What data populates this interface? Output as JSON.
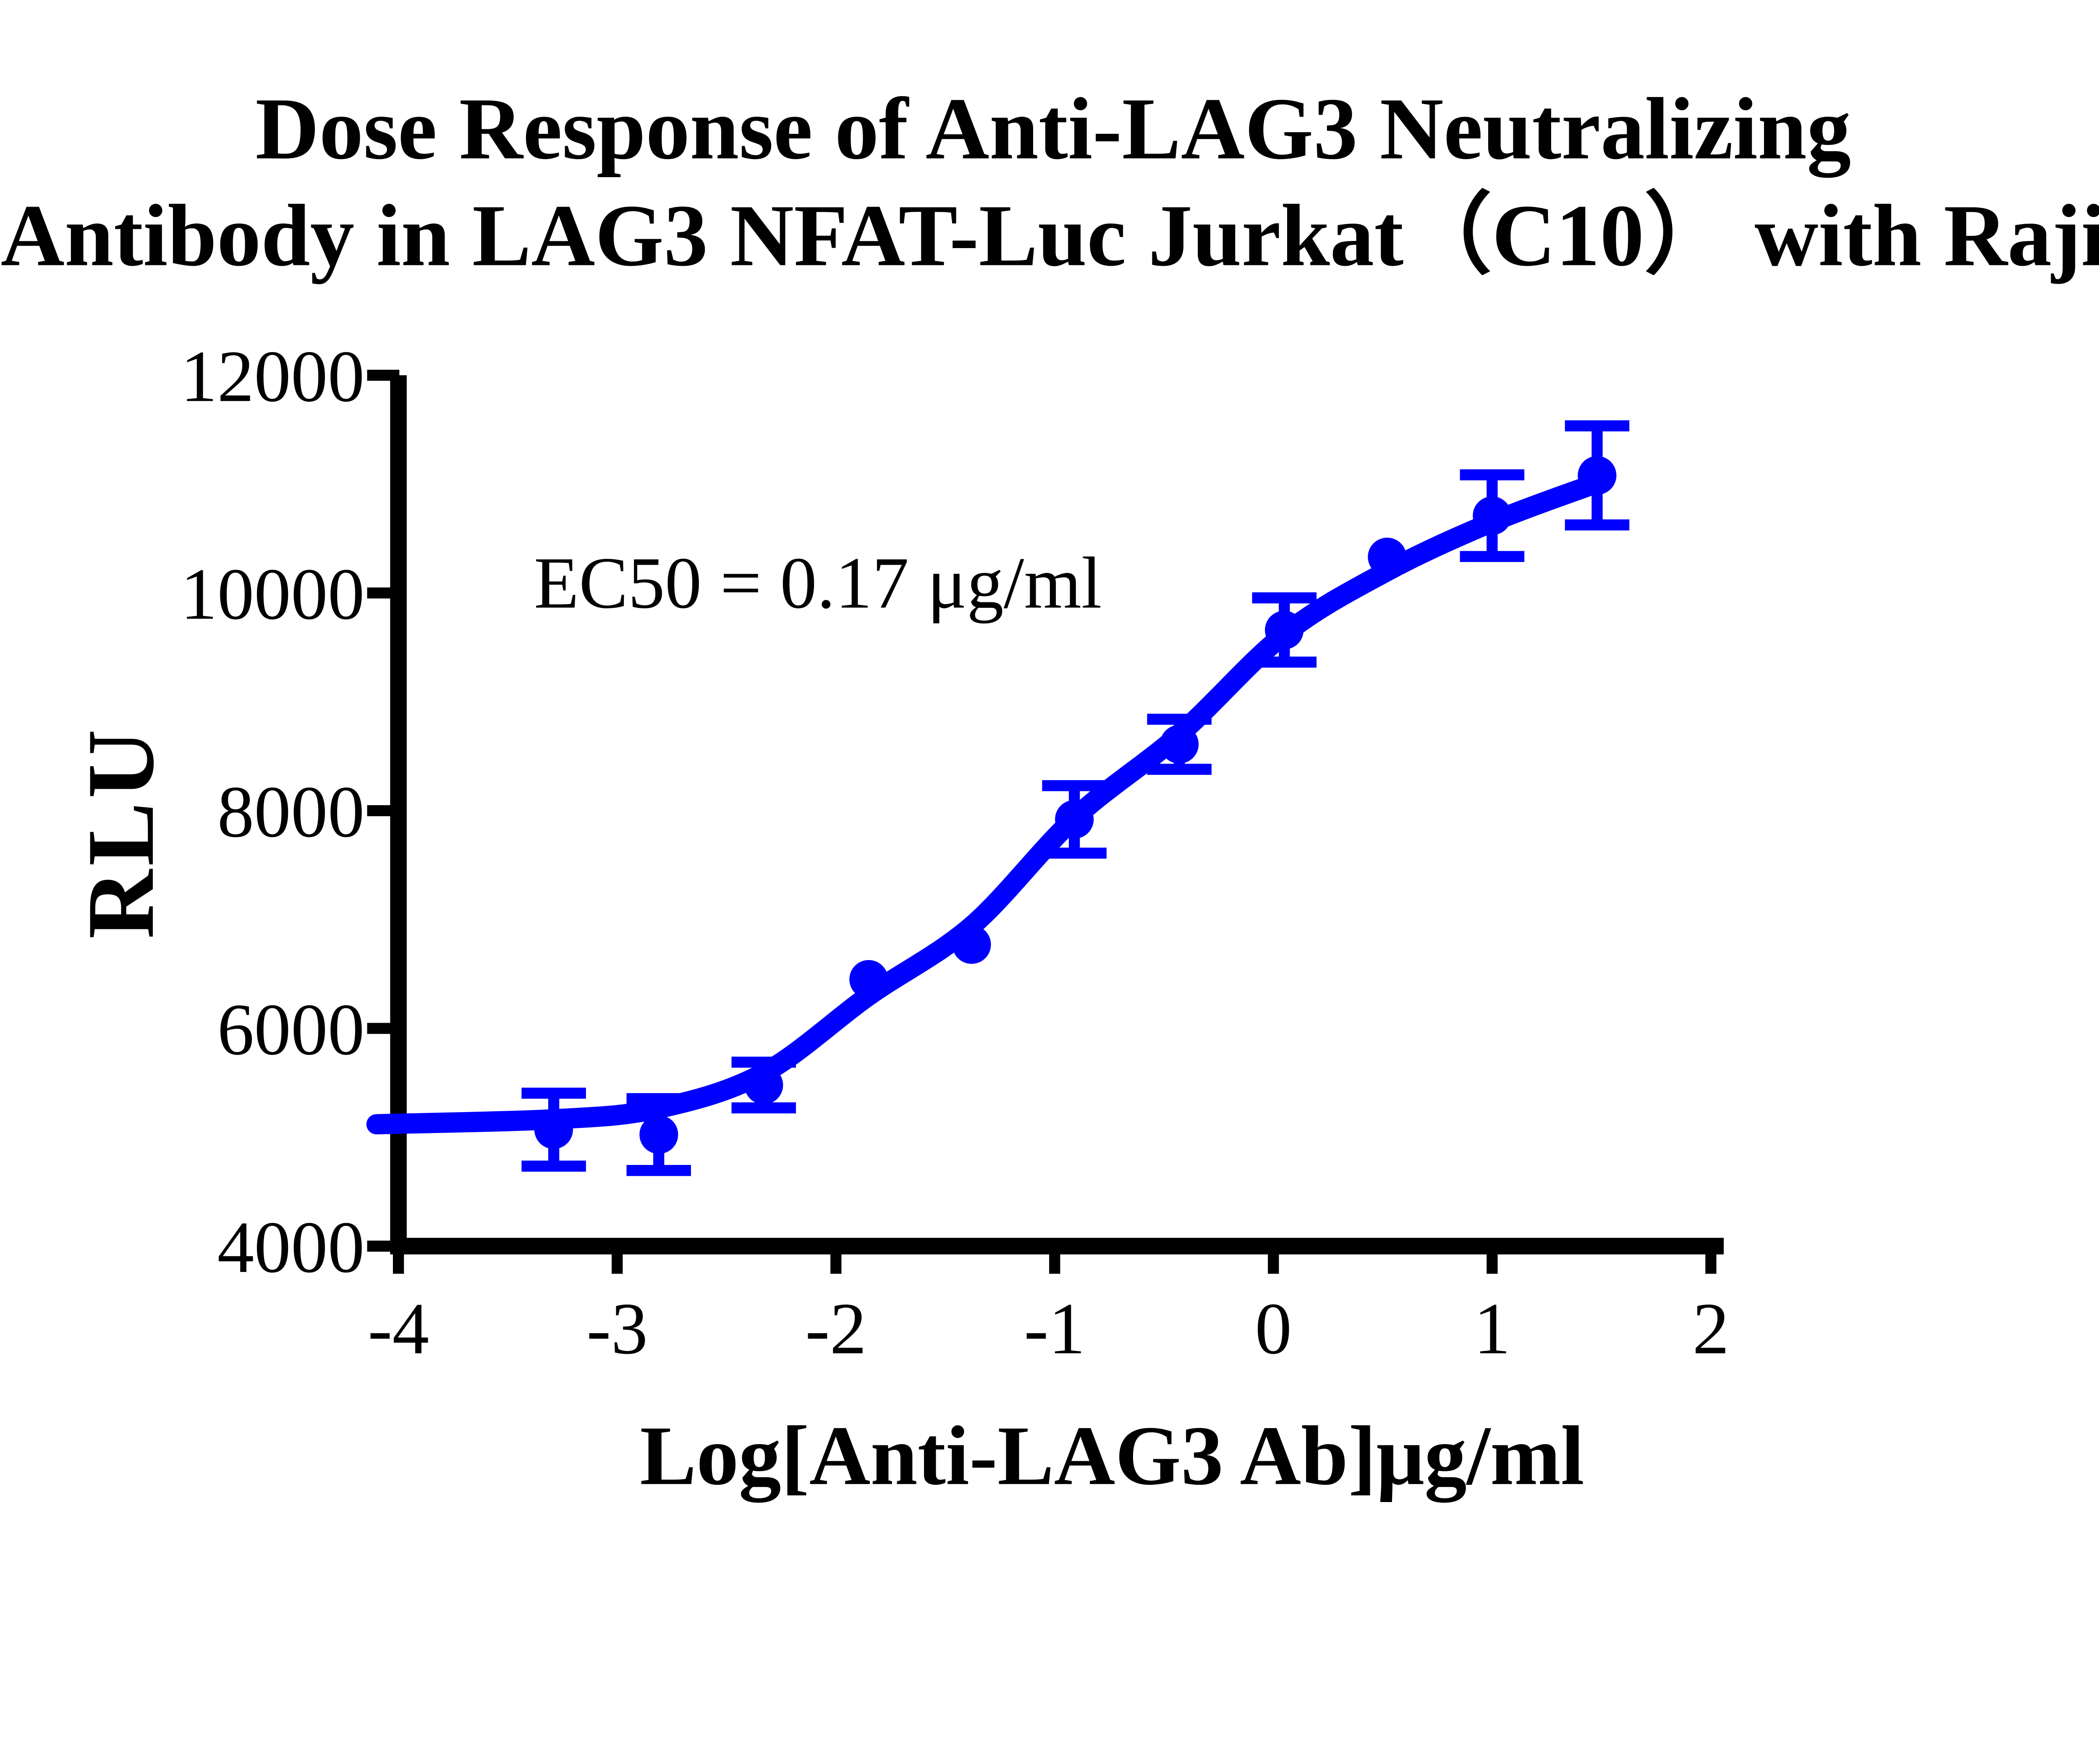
{
  "chart_data": {
    "type": "scatter",
    "title_line1": "Dose Response of Anti-LAG3 Neutralizing",
    "title_line2": "Antibody in LAG3 NFAT-Luc Jurkat（C10） with Raji",
    "annotation": "EC50 = 0.17 μg/ml",
    "xlabel": "Log[Anti-LAG3 Ab]μg/ml",
    "ylabel": "RLU",
    "xlim": [
      -4,
      2
    ],
    "ylim": [
      4000,
      12000
    ],
    "x_ticks": [
      -4,
      -3,
      -2,
      -1,
      0,
      1,
      2
    ],
    "y_ticks": [
      12000,
      10000,
      8000,
      6000,
      4000
    ],
    "grid": "off",
    "legend": "none",
    "series_color": "#0000FF",
    "axis_color": "#000000",
    "points": [
      {
        "x": -3.29,
        "y": 5070,
        "err": 335
      },
      {
        "x": -2.81,
        "y": 5025,
        "err": 330
      },
      {
        "x": -2.33,
        "y": 5480,
        "err": 210
      },
      {
        "x": -1.85,
        "y": 6450,
        "err": 0
      },
      {
        "x": -1.38,
        "y": 6770,
        "err": 0
      },
      {
        "x": -0.91,
        "y": 7920,
        "err": 310
      },
      {
        "x": -0.43,
        "y": 8610,
        "err": 230
      },
      {
        "x": 0.05,
        "y": 9660,
        "err": 295
      },
      {
        "x": 0.52,
        "y": 10330,
        "err": 0
      },
      {
        "x": 1.0,
        "y": 10710,
        "err": 375
      },
      {
        "x": 1.48,
        "y": 11080,
        "err": 455
      }
    ],
    "fit_curve": [
      [
        -4.1,
        5120
      ],
      [
        -3.29,
        5165
      ],
      [
        -2.81,
        5265
      ],
      [
        -2.33,
        5590
      ],
      [
        -1.85,
        6300
      ],
      [
        -1.38,
        6940
      ],
      [
        -0.91,
        7930
      ],
      [
        -0.43,
        8700
      ],
      [
        0.05,
        9620
      ],
      [
        0.52,
        10200
      ],
      [
        1.0,
        10650
      ],
      [
        1.48,
        11010
      ]
    ]
  }
}
